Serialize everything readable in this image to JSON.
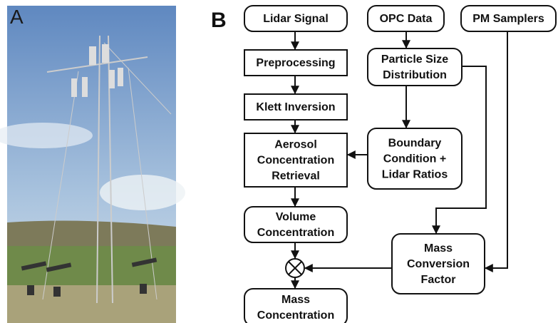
{
  "panels": {
    "a": "A",
    "b": "B"
  },
  "nodes": [
    {
      "id": "lidar",
      "lines": [
        "Lidar Signal"
      ]
    },
    {
      "id": "opc",
      "lines": [
        "OPC Data"
      ]
    },
    {
      "id": "pm",
      "lines": [
        "PM Samplers"
      ]
    },
    {
      "id": "pre",
      "lines": [
        "Preprocessing"
      ]
    },
    {
      "id": "psd",
      "lines": [
        "Particle Size",
        "Distribution"
      ]
    },
    {
      "id": "klett",
      "lines": [
        "Klett Inversion"
      ]
    },
    {
      "id": "acr",
      "lines": [
        "Aerosol",
        "Concentration",
        "Retrieval"
      ]
    },
    {
      "id": "bc",
      "lines": [
        "Boundary",
        "Condition +",
        "Lidar Ratios"
      ]
    },
    {
      "id": "vol",
      "lines": [
        "Volume",
        "Concentration"
      ]
    },
    {
      "id": "mcf",
      "lines": [
        "Mass",
        "Conversion",
        "Factor"
      ]
    },
    {
      "id": "mass",
      "lines": [
        "Mass",
        "Concentration"
      ]
    }
  ]
}
